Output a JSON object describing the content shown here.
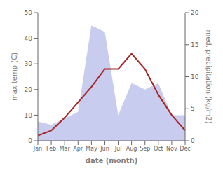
{
  "chart_data": {
    "type": "line",
    "categories": [
      "Jan",
      "Feb",
      "Mar",
      "Apr",
      "May",
      "Jun",
      "Jul",
      "Aug",
      "Sep",
      "Oct",
      "Nov",
      "Dec"
    ],
    "xlabel": "date (month)",
    "ylabel": "max temp (C)",
    "y2label": "med. precipitation (kg/m2)",
    "series": [
      {
        "type": "area",
        "axis": "y2",
        "color": "#c8ccee",
        "values": [
          3,
          2.5,
          3.5,
          4.5,
          18,
          17,
          4,
          9,
          8,
          9,
          4,
          4
        ]
      },
      {
        "type": "line",
        "color": "#aa2222",
        "values": [
          2,
          4,
          9,
          15,
          21,
          28,
          28,
          34,
          28,
          18,
          10,
          4
        ]
      }
    ],
    "ylim": [
      0,
      50
    ],
    "yticks": [
      0,
      10,
      20,
      30,
      40,
      50
    ],
    "y2lim": [
      0,
      20
    ],
    "y2ticks": [
      0,
      5,
      10,
      15,
      20
    ]
  }
}
